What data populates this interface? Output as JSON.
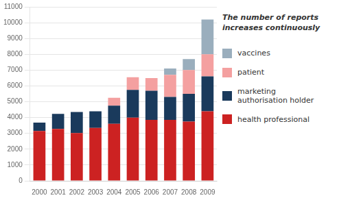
{
  "chart_data": {
    "type": "bar",
    "stacked": true,
    "annotation": "The number of reports\nincreases continuously",
    "categories": [
      "2000",
      "2001",
      "2002",
      "2003",
      "2004",
      "2005",
      "2006",
      "2007",
      "2008",
      "2009"
    ],
    "series": [
      {
        "name": "health professional",
        "color": "#cc2222",
        "values": [
          3150,
          3280,
          3020,
          3350,
          3600,
          4000,
          3850,
          3850,
          3750,
          4400
        ]
      },
      {
        "name": "marketing\nauthorisation holder",
        "color": "#1a3a5c",
        "values": [
          530,
          950,
          1330,
          1050,
          1150,
          1750,
          1850,
          1450,
          1750,
          2200
        ]
      },
      {
        "name": "patient",
        "color": "#f4a0a0",
        "values": [
          0,
          0,
          0,
          0,
          500,
          800,
          800,
          1400,
          1500,
          1400
        ]
      },
      {
        "name": "vaccines",
        "color": "#9aaebd",
        "values": [
          0,
          0,
          0,
          0,
          0,
          0,
          0,
          400,
          700,
          2200
        ]
      }
    ],
    "ylim": [
      0,
      11000
    ],
    "yticks": [
      0,
      1000,
      2000,
      3000,
      4000,
      5000,
      6000,
      7000,
      8000,
      9000,
      10000,
      11000
    ],
    "grid": true,
    "legend": "right"
  }
}
